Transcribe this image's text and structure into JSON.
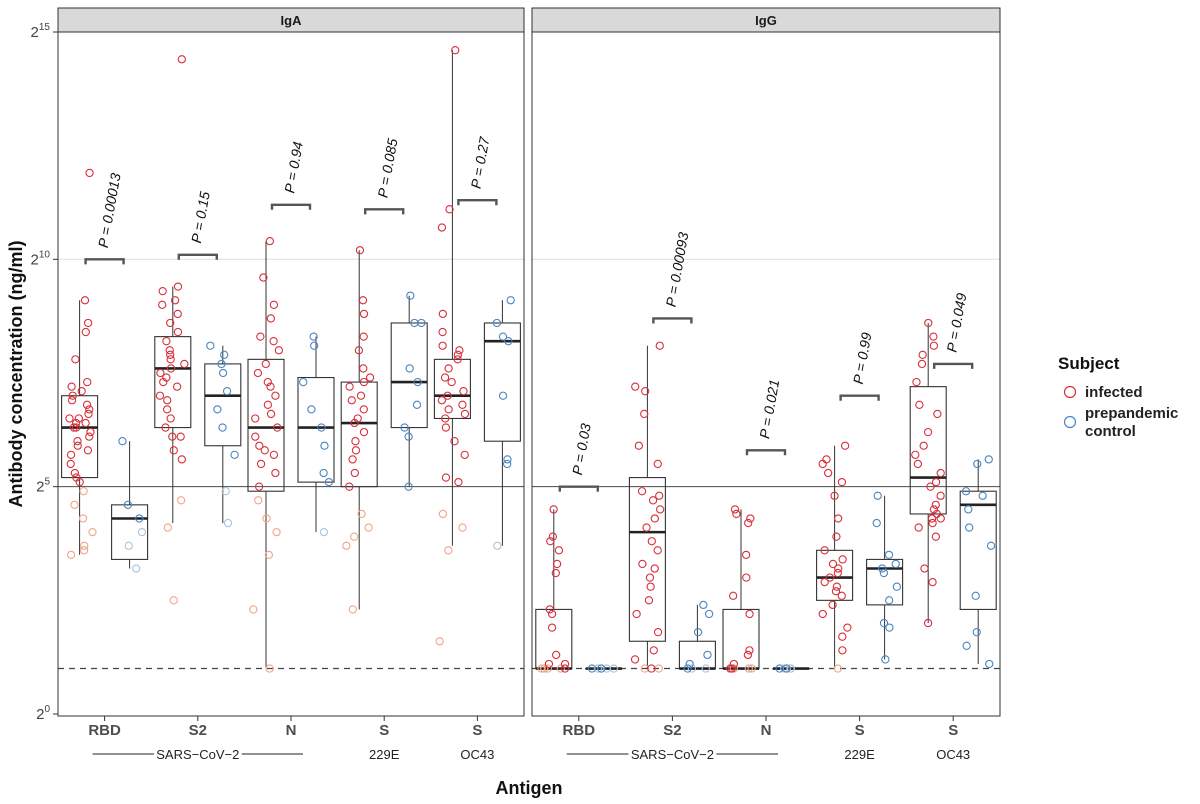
{
  "chart_data": {
    "type": "box",
    "ylabel": "Antibody concentration (ng/ml)",
    "xlabel": "Antigen",
    "y_scale": "log2",
    "ylim": [
      0,
      15
    ],
    "y_ticks": [
      {
        "value": 0,
        "base": "2",
        "exp": "0"
      },
      {
        "value": 5,
        "base": "2",
        "exp": "5"
      },
      {
        "value": 10,
        "base": "2",
        "exp": "10"
      },
      {
        "value": 15,
        "base": "2",
        "exp": "15"
      }
    ],
    "dashed_line": 1,
    "solid_line": 5,
    "faint_line": 10,
    "legend": {
      "title": "Subject",
      "items": [
        {
          "label": "infected",
          "color": "#d7303b"
        },
        {
          "label": "prepandemic",
          "label2": "control",
          "color": "#4a86c0"
        }
      ]
    },
    "categories": [
      {
        "label": "RBD",
        "bold": true
      },
      {
        "label": "S2",
        "bold": true
      },
      {
        "label": "N",
        "bold": true
      },
      {
        "label": "S",
        "bold": true
      },
      {
        "label": "S",
        "bold": true
      }
    ],
    "group_labels": {
      "sars": "SARS−CoV−2",
      "e229": "229E",
      "oc43": "OC43"
    },
    "panels": [
      {
        "title": "IgA",
        "groups": [
          {
            "p": "P = 0.00013",
            "bracket": 10.0,
            "infected": {
              "q1": 5.2,
              "median": 6.3,
              "q3": 7.0,
              "lo": 3.5,
              "hi": 9.1,
              "points": [
                11.9,
                9.1,
                8.6,
                8.4,
                7.8,
                7.3,
                7.2,
                7.1,
                7.0,
                6.9,
                6.8,
                6.7,
                6.6,
                6.5,
                6.5,
                6.4,
                6.4,
                6.3,
                6.3,
                6.2,
                6.1,
                6.0,
                5.9,
                5.8,
                5.7,
                5.5,
                5.3,
                5.2,
                5.1
              ],
              "faint": [
                4.9,
                4.6,
                4.3,
                4.0,
                3.7,
                3.6,
                3.5
              ]
            },
            "control": {
              "q1": 3.4,
              "median": 4.3,
              "q3": 4.6,
              "lo": 3.2,
              "hi": 6.0,
              "points": [
                6.0,
                4.6,
                4.3
              ],
              "faint": [
                4.0,
                3.7,
                3.2
              ]
            }
          },
          {
            "p": "P = 0.15",
            "bracket": 10.1,
            "infected": {
              "q1": 6.3,
              "median": 7.6,
              "q3": 8.3,
              "lo": 4.2,
              "hi": 9.4,
              "points": [
                14.4,
                9.4,
                9.3,
                9.1,
                9.0,
                8.8,
                8.6,
                8.4,
                8.2,
                8.0,
                7.9,
                7.8,
                7.7,
                7.6,
                7.5,
                7.4,
                7.3,
                7.2,
                7.0,
                6.9,
                6.7,
                6.5,
                6.3,
                6.1,
                6.1,
                5.8,
                5.6
              ],
              "faint": [
                4.7,
                4.1,
                2.5
              ]
            },
            "control": {
              "q1": 5.9,
              "median": 7.0,
              "q3": 7.7,
              "lo": 4.2,
              "hi": 8.1,
              "points": [
                8.1,
                7.9,
                7.7,
                7.5,
                7.1,
                6.7,
                6.3,
                5.7
              ],
              "faint": [
                4.9,
                4.2
              ]
            }
          },
          {
            "p": "P = 0.94",
            "bracket": 11.2,
            "infected": {
              "q1": 4.9,
              "median": 6.3,
              "q3": 7.8,
              "lo": 1.0,
              "hi": 10.4,
              "points": [
                10.4,
                9.6,
                9.0,
                8.7,
                8.3,
                8.2,
                8.0,
                7.7,
                7.5,
                7.3,
                7.2,
                7.0,
                6.8,
                6.6,
                6.5,
                6.3,
                6.1,
                5.9,
                5.8,
                5.7,
                5.5,
                5.3,
                5.0
              ],
              "faint": [
                4.7,
                4.3,
                4.0,
                3.5,
                2.3,
                1.0
              ]
            },
            "control": {
              "q1": 5.1,
              "median": 6.3,
              "q3": 7.4,
              "lo": 4.0,
              "hi": 8.3,
              "points": [
                8.3,
                8.1,
                7.3,
                6.7,
                6.3,
                5.9,
                5.3,
                5.1
              ],
              "faint": [
                4.0
              ]
            }
          },
          {
            "p": "P = 0.085",
            "bracket": 11.1,
            "infected": {
              "q1": 5.0,
              "median": 6.4,
              "q3": 7.3,
              "lo": 2.3,
              "hi": 10.2,
              "points": [
                10.2,
                9.1,
                8.8,
                8.3,
                8.0,
                7.6,
                7.4,
                7.3,
                7.2,
                7.0,
                6.9,
                6.7,
                6.5,
                6.4,
                6.2,
                6.0,
                5.8,
                5.6,
                5.3,
                5.0
              ],
              "faint": [
                4.4,
                4.1,
                3.9,
                3.7,
                2.3
              ]
            },
            "control": {
              "q1": 6.3,
              "median": 7.3,
              "q3": 8.6,
              "lo": 5.0,
              "hi": 9.2,
              "points": [
                9.2,
                8.6,
                8.6,
                7.6,
                7.3,
                6.8,
                6.3,
                6.1,
                5.0
              ],
              "faint": []
            }
          },
          {
            "p": "P = 0.27",
            "bracket": 11.3,
            "infected": {
              "q1": 6.5,
              "median": 7.0,
              "q3": 7.8,
              "lo": 3.7,
              "hi": 14.6,
              "points": [
                14.6,
                11.1,
                10.7,
                8.8,
                8.4,
                8.1,
                8.0,
                7.9,
                7.8,
                7.6,
                7.4,
                7.3,
                7.1,
                7.0,
                6.9,
                6.8,
                6.7,
                6.6,
                6.5,
                6.3,
                6.0,
                5.7,
                5.2,
                5.1
              ],
              "faint": [
                4.4,
                4.1,
                3.6,
                1.6
              ]
            },
            "control": {
              "q1": 6.0,
              "median": 8.2,
              "q3": 8.6,
              "lo": 3.7,
              "hi": 9.1,
              "points": [
                9.1,
                8.6,
                8.3,
                8.2,
                7.0,
                5.6,
                5.5
              ],
              "faint": [
                3.7
              ]
            }
          }
        ]
      },
      {
        "title": "IgG",
        "groups": [
          {
            "p": "P = 0.03",
            "bracket": 5.0,
            "infected": {
              "q1": 1.0,
              "median": 1.0,
              "q3": 2.3,
              "lo": 1.0,
              "hi": 4.5,
              "points": [
                4.5,
                3.9,
                3.8,
                3.6,
                3.3,
                3.1,
                2.3,
                2.2,
                1.9,
                1.3,
                1.1,
                1.1,
                1.0
              ],
              "faint": [
                1.0,
                1.0,
                1.0,
                1.0,
                1.0
              ]
            },
            "control": {
              "q1": 1.0,
              "median": 1.0,
              "q3": 1.0,
              "lo": 1.0,
              "hi": 1.0,
              "points": [
                1.0,
                1.0
              ],
              "faint": [
                1.0,
                1.0,
                1.0,
                1.0
              ]
            }
          },
          {
            "p": "P = 0.00093",
            "bracket": 8.7,
            "infected": {
              "q1": 1.6,
              "median": 4.0,
              "q3": 5.2,
              "lo": 1.0,
              "hi": 8.1,
              "points": [
                8.1,
                7.2,
                7.1,
                6.6,
                5.9,
                5.5,
                4.9,
                4.8,
                4.7,
                4.5,
                4.3,
                4.1,
                3.8,
                3.6,
                3.3,
                3.2,
                3.0,
                2.8,
                2.5,
                2.2,
                1.8,
                1.4,
                1.2,
                1.0
              ],
              "faint": [
                1.0,
                1.0
              ]
            },
            "control": {
              "q1": 1.0,
              "median": 1.0,
              "q3": 1.6,
              "lo": 1.0,
              "hi": 2.4,
              "points": [
                2.4,
                2.2,
                1.8,
                1.3,
                1.1,
                1.0
              ],
              "faint": [
                1.0,
                1.0
              ]
            }
          },
          {
            "p": "P = 0.021",
            "bracket": 5.8,
            "infected": {
              "q1": 1.0,
              "median": 1.0,
              "q3": 2.3,
              "lo": 1.0,
              "hi": 4.5,
              "points": [
                4.5,
                4.4,
                4.3,
                4.2,
                3.5,
                3.0,
                2.6,
                2.2,
                1.4,
                1.3,
                1.1,
                1.0,
                1.0
              ],
              "faint": [
                1.0,
                1.0,
                1.0
              ]
            },
            "control": {
              "q1": 1.0,
              "median": 1.0,
              "q3": 1.0,
              "lo": 1.0,
              "hi": 1.0,
              "points": [
                1.0,
                1.0
              ],
              "faint": [
                1.0,
                1.0,
                1.0,
                1.0
              ]
            }
          },
          {
            "p": "P = 0.99",
            "bracket": 7.0,
            "infected": {
              "q1": 2.5,
              "median": 3.0,
              "q3": 3.6,
              "lo": 1.0,
              "hi": 5.9,
              "points": [
                5.9,
                5.6,
                5.5,
                5.3,
                5.1,
                4.8,
                4.3,
                3.9,
                3.6,
                3.4,
                3.3,
                3.2,
                3.1,
                3.0,
                2.9,
                2.8,
                2.7,
                2.6,
                2.4,
                2.2,
                1.9,
                1.7,
                1.4
              ],
              "faint": [
                1.0
              ]
            },
            "control": {
              "q1": 2.4,
              "median": 3.2,
              "q3": 3.4,
              "lo": 1.2,
              "hi": 4.8,
              "points": [
                4.8,
                4.2,
                3.5,
                3.3,
                3.2,
                3.1,
                2.8,
                2.5,
                2.0,
                1.9,
                1.2
              ],
              "faint": []
            }
          },
          {
            "p": "P = 0.049",
            "bracket": 7.7,
            "infected": {
              "q1": 4.4,
              "median": 5.2,
              "q3": 7.2,
              "lo": 2.0,
              "hi": 8.6,
              "points": [
                8.6,
                8.3,
                8.1,
                7.9,
                7.7,
                7.3,
                6.8,
                6.6,
                6.2,
                5.9,
                5.7,
                5.5,
                5.3,
                5.1,
                5.0,
                4.8,
                4.6,
                4.5,
                4.4,
                4.3,
                4.3,
                4.2,
                4.1,
                3.9,
                3.2,
                2.9,
                2.0
              ],
              "faint": []
            },
            "control": {
              "q1": 2.3,
              "median": 4.6,
              "q3": 4.9,
              "lo": 1.1,
              "hi": 5.6,
              "points": [
                5.6,
                5.5,
                4.9,
                4.8,
                4.5,
                4.1,
                3.7,
                2.6,
                1.8,
                1.5,
                1.1
              ],
              "faint": []
            }
          }
        ]
      }
    ]
  }
}
